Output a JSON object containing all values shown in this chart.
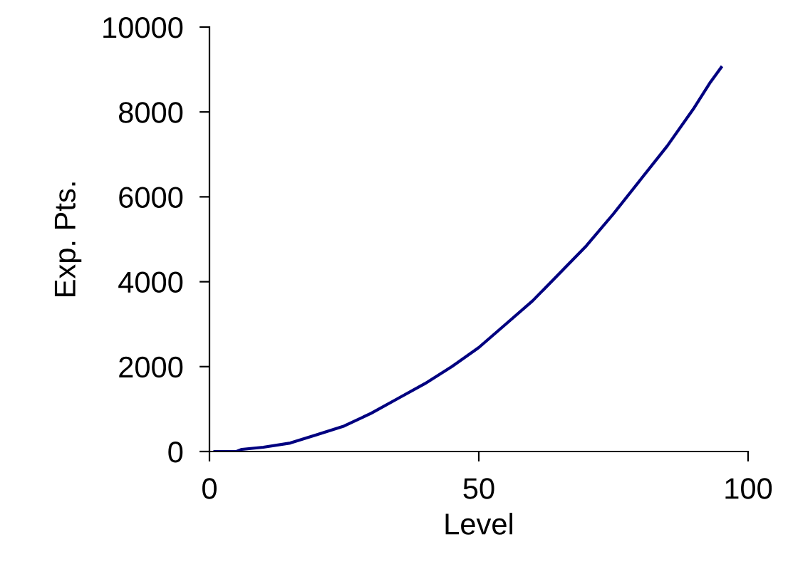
{
  "chart_data": {
    "type": "line",
    "xlabel": "Level",
    "ylabel": "Exp. Pts.",
    "x": [
      1,
      5,
      6,
      10,
      15,
      20,
      25,
      30,
      35,
      40,
      45,
      50,
      55,
      60,
      65,
      70,
      75,
      80,
      85,
      90,
      93,
      95
    ],
    "series": [
      {
        "color": "#000080",
        "values": [
          0,
          0,
          50,
          100,
          200,
          400,
          600,
          900,
          1250,
          1600,
          2000,
          2450,
          3000,
          3550,
          4200,
          4850,
          5600,
          6400,
          7200,
          8100,
          8700,
          9050
        ]
      }
    ],
    "xlim": [
      0,
      100
    ],
    "xticks": [
      0,
      50,
      100
    ],
    "ylim": [
      0,
      10000
    ],
    "yticks": [
      0,
      2000,
      4000,
      6000,
      8000,
      10000
    ],
    "grid": false,
    "legend": false,
    "marker": "none",
    "line_style": "solid"
  }
}
